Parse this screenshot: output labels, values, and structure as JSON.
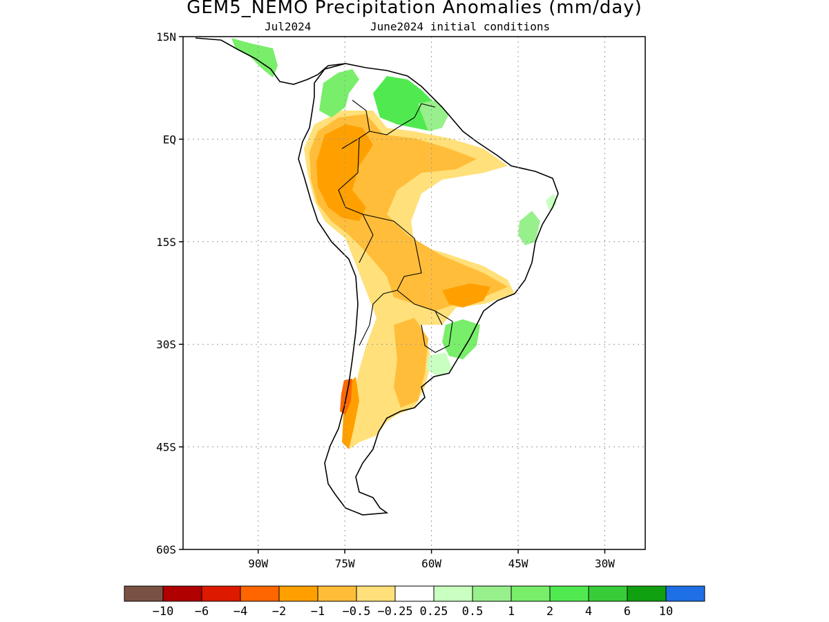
{
  "title": "GEM5_NEMO Precipitation Anomalies (mm/day)",
  "subtitle_left": "Jul2024",
  "subtitle_right": "June2024 initial conditions",
  "map": {
    "region": "South America",
    "lon_range": [
      -103,
      -23
    ],
    "lat_range": [
      -60,
      15
    ],
    "grid": "dotted",
    "y_ticks": [
      {
        "lat": 15,
        "label": "15N"
      },
      {
        "lat": 0,
        "label": "EQ"
      },
      {
        "lat": -15,
        "label": "15S"
      },
      {
        "lat": -30,
        "label": "30S"
      },
      {
        "lat": -45,
        "label": "45S"
      },
      {
        "lat": -60,
        "label": "60S"
      }
    ],
    "x_ticks": [
      {
        "lon": -90,
        "label": "90W"
      },
      {
        "lon": -75,
        "label": "75W"
      },
      {
        "lon": -60,
        "label": "60W"
      },
      {
        "lon": -45,
        "label": "45W"
      },
      {
        "lon": -30,
        "label": "30W"
      }
    ]
  },
  "colorbar": {
    "colors": [
      "#7a5243",
      "#b00000",
      "#dd1a00",
      "#ff6600",
      "#ffa000",
      "#ffbd3a",
      "#ffe07a",
      "#ffffff",
      "#c9ffc0",
      "#98f08c",
      "#78ee6a",
      "#50ea50",
      "#38cc38",
      "#10a010",
      "#1f6fe6"
    ],
    "labels": [
      "−10",
      "−6",
      "−4",
      "−2",
      "−1",
      "−0.5",
      "−0.25",
      "0.25",
      "0.5",
      "1",
      "2",
      "4",
      "6",
      "10"
    ]
  },
  "anomaly_regions": [
    {
      "name": "central-america-wet",
      "level": "1 to 2",
      "color": "#78ee6a"
    },
    {
      "name": "colombia-venezuela-wet",
      "level": "1 to 2",
      "color": "#78ee6a"
    },
    {
      "name": "guiana-wet",
      "level": "2 to 4",
      "color": "#50ea50"
    },
    {
      "name": "amazon-dry-light",
      "level": "-0.5 to -0.25",
      "color": "#ffe07a"
    },
    {
      "name": "amazon-dry",
      "level": "-1 to -0.5",
      "color": "#ffbd3a"
    },
    {
      "name": "peru-dry-strong",
      "level": "-2 to -1",
      "color": "#ffa000"
    },
    {
      "name": "southern-brazil-wet",
      "level": "1 to 2",
      "color": "#78ee6a"
    },
    {
      "name": "bahia-wet",
      "level": "0.5 to 1",
      "color": "#98f08c"
    },
    {
      "name": "chile-dry",
      "level": "-2 to -1",
      "color": "#ffa000"
    },
    {
      "name": "chile-very-dry",
      "level": "-4 to -2",
      "color": "#ff6600"
    }
  ]
}
